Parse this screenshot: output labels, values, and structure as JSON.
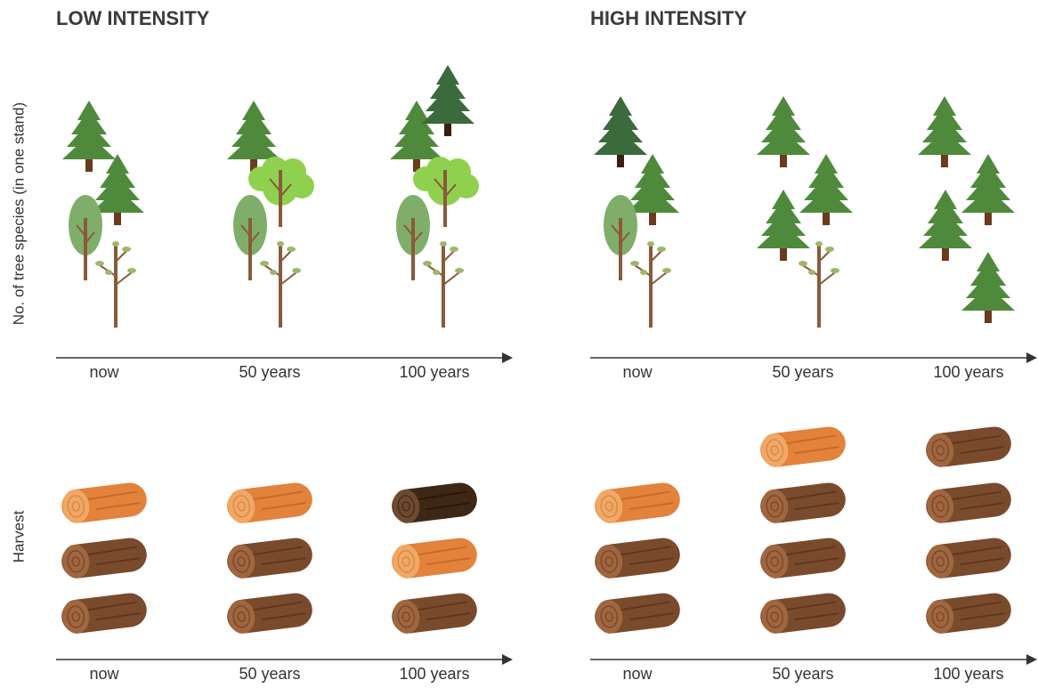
{
  "panels": [
    {
      "title": "LOW INTENSITY",
      "species_axis": [
        "now",
        "50 years",
        "100 years"
      ],
      "harvest_axis": [
        "now",
        "50 years",
        "100 years"
      ]
    },
    {
      "title": "HIGH INTENSITY",
      "species_axis": [
        "now",
        "50 years",
        "100 years"
      ],
      "harvest_axis": [
        "now",
        "50 years",
        "100 years"
      ]
    }
  ],
  "y_labels": {
    "species": "No. of tree species  (in one stand)",
    "harvest": "Harvest"
  }
}
